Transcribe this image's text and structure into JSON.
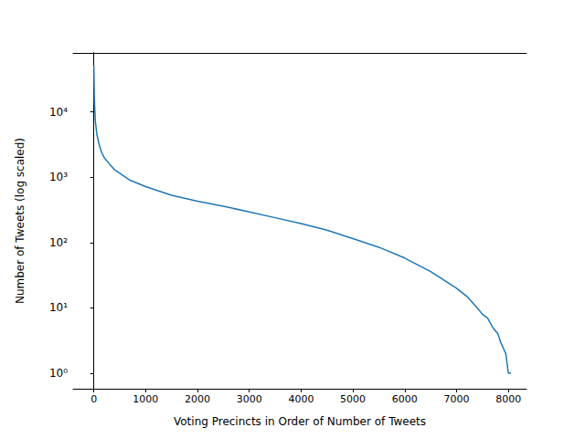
{
  "chart_data": {
    "type": "line",
    "x_label": "Voting Precincts in Order of Number of Tweets",
    "y_label": "Number of Tweets (log scaled)",
    "color": "#1f77b4",
    "line_style": "solid",
    "log": "y",
    "grid": false,
    "xlim": [
      -400,
      8350
    ],
    "xticks": [
      0,
      1000,
      2000,
      3000,
      4000,
      5000,
      6000,
      7000,
      8000
    ],
    "ylim": [
      0.58,
      80000
    ],
    "yticks": [
      {
        "value": 1,
        "label": "10⁰"
      },
      {
        "value": 10,
        "label": "10¹"
      },
      {
        "value": 100,
        "label": "10²"
      },
      {
        "value": 1000,
        "label": "10³"
      },
      {
        "value": 10000,
        "label": "10⁴"
      }
    ],
    "x": [
      0,
      10,
      30,
      60,
      100,
      150,
      200,
      300,
      400,
      500,
      700,
      1000,
      1500,
      2000,
      2500,
      3000,
      3500,
      4000,
      4500,
      5000,
      5500,
      6000,
      6500,
      7000,
      7200,
      7400,
      7500,
      7600,
      7700,
      7800,
      7850,
      7950,
      8000,
      8050
    ],
    "values": [
      52000,
      15000,
      7000,
      4500,
      3200,
      2400,
      2000,
      1600,
      1300,
      1150,
      900,
      720,
      530,
      430,
      360,
      295,
      240,
      195,
      155,
      115,
      85,
      58,
      36,
      20,
      15,
      10,
      8,
      7,
      5,
      4,
      3,
      2,
      1,
      1
    ]
  }
}
